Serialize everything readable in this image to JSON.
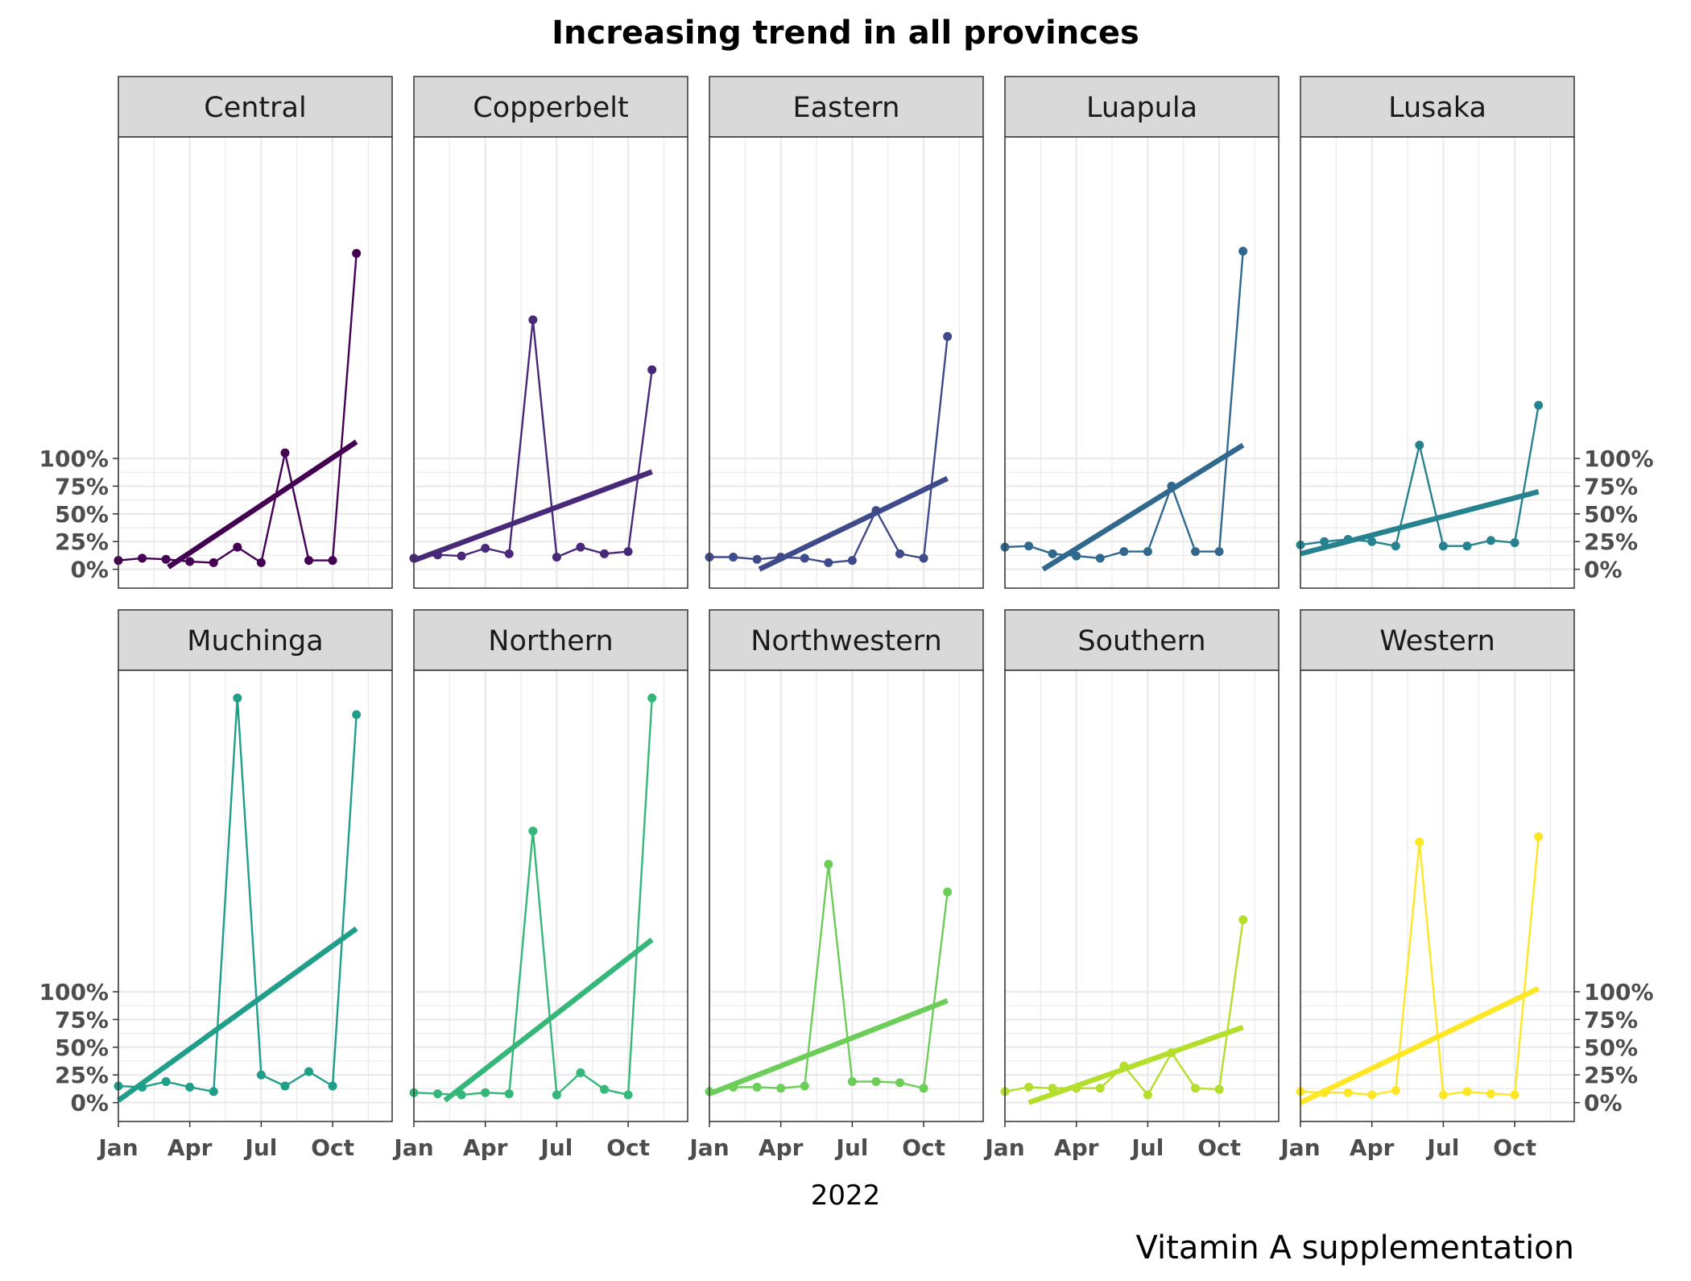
{
  "chart_data": {
    "type": "line",
    "title": "Increasing trend in all provinces",
    "xlabel": "2022",
    "ylabel": "",
    "caption": "Vitamin A supplementation",
    "x_ticks": [
      "Jan",
      "Apr",
      "Jul",
      "Oct"
    ],
    "y_ticks": [
      "0%",
      "25%",
      "50%",
      "75%",
      "100%"
    ],
    "y_tick_values": [
      0,
      25,
      50,
      75,
      100
    ],
    "ylim": [
      -17,
      390
    ],
    "xlim": [
      0,
      11.5
    ],
    "grid": true,
    "legend": "none",
    "months": [
      "Jan",
      "Feb",
      "Mar",
      "Apr",
      "May",
      "Jun",
      "Jul",
      "Aug",
      "Sep",
      "Oct",
      "Nov"
    ],
    "panels": [
      {
        "name": "Central",
        "color": "#440154",
        "values": [
          8,
          10,
          9,
          7,
          6,
          20,
          6,
          105,
          8,
          8,
          285
        ],
        "trend": [
          [
            2.1,
            2
          ],
          [
            10,
            115
          ]
        ]
      },
      {
        "name": "Copperbelt",
        "color": "#482878",
        "values": [
          10,
          13,
          12,
          19,
          14,
          225,
          11,
          20,
          14,
          16,
          180
        ],
        "trend": [
          [
            0,
            8
          ],
          [
            10,
            88
          ]
        ]
      },
      {
        "name": "Eastern",
        "color": "#3E4A89",
        "values": [
          11,
          11,
          9,
          11,
          10,
          6,
          8,
          53,
          14,
          10,
          210
        ],
        "trend": [
          [
            2.1,
            0
          ],
          [
            10,
            82
          ]
        ]
      },
      {
        "name": "Luapula",
        "color": "#31688E",
        "values": [
          20,
          21,
          14,
          12,
          10,
          16,
          16,
          75,
          16,
          16,
          287
        ],
        "trend": [
          [
            1.6,
            0
          ],
          [
            10,
            112
          ]
        ]
      },
      {
        "name": "Lusaka",
        "color": "#26828E",
        "values": [
          22,
          25,
          27,
          25,
          21,
          112,
          21,
          21,
          26,
          24,
          148
        ],
        "trend": [
          [
            0,
            14
          ],
          [
            10,
            70
          ]
        ]
      },
      {
        "name": "Muchinga",
        "color": "#1F9E89",
        "values": [
          15,
          14,
          19,
          14,
          10,
          365,
          25,
          15,
          28,
          15,
          350
        ],
        "trend": [
          [
            0,
            2
          ],
          [
            10,
            157
          ]
        ]
      },
      {
        "name": "Northern",
        "color": "#35B779",
        "values": [
          9,
          8,
          7,
          9,
          8,
          245,
          7,
          27,
          12,
          7,
          365
        ],
        "trend": [
          [
            1.3,
            2
          ],
          [
            10,
            147
          ]
        ]
      },
      {
        "name": "Northwestern",
        "color": "#6DCD59",
        "values": [
          10,
          14,
          14,
          13,
          15,
          215,
          19,
          19,
          18,
          13,
          190
        ],
        "trend": [
          [
            0,
            8
          ],
          [
            10,
            92
          ]
        ]
      },
      {
        "name": "Southern",
        "color": "#B4DE2C",
        "values": [
          10,
          14,
          13,
          13,
          13,
          33,
          7,
          45,
          13,
          12,
          165
        ],
        "trend": [
          [
            1,
            0
          ],
          [
            10,
            68
          ]
        ]
      },
      {
        "name": "Western",
        "color": "#FDE725",
        "values": [
          10,
          9,
          9,
          7,
          11,
          235,
          7,
          10,
          8,
          7,
          240
        ],
        "trend": [
          [
            0,
            0
          ],
          [
            10,
            103
          ]
        ]
      }
    ]
  }
}
